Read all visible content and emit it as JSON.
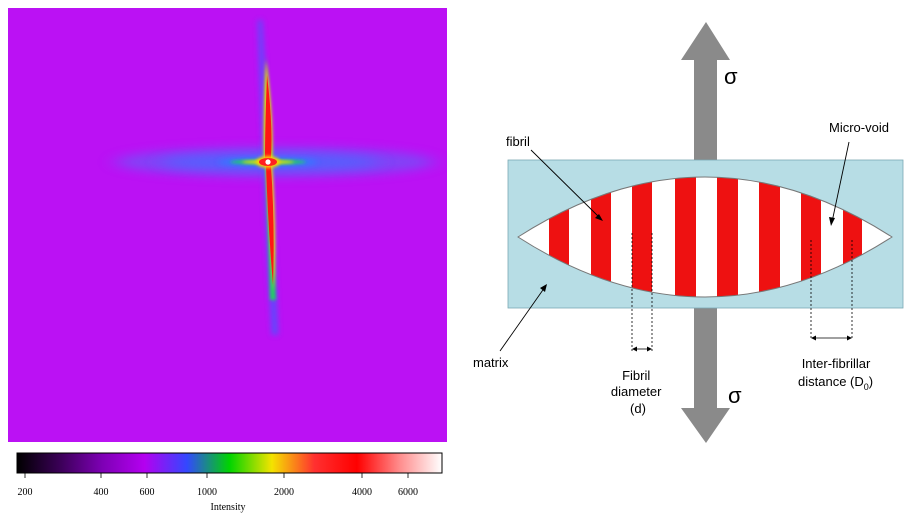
{
  "pattern": {
    "background_color": "#bb11f4",
    "colorbar": {
      "ticks": [
        "200",
        "400",
        "600",
        "1000",
        "2000",
        "4000",
        "6000"
      ],
      "label": "Intensity",
      "stops": [
        "#000000",
        "#3a0056",
        "#7d00b4",
        "#b400f0",
        "#3348ff",
        "#00d400",
        "#f4e300",
        "#ff3030",
        "#ff0000",
        "#ff8c8c",
        "#ffffff"
      ]
    }
  },
  "schematic": {
    "stress_symbol": "σ",
    "labels": {
      "fibril": "fibril",
      "micro_void": "Micro-void",
      "matrix": "matrix",
      "fibril_diameter": [
        "Fibril",
        "diameter",
        "(d)"
      ],
      "inter_fibrillar": [
        "Inter-fibrillar",
        "distance (D"
      ],
      "inter_fibrillar_sub": "0",
      "inter_fibrillar_close": ")"
    },
    "colors": {
      "matrix": "#b7dde5",
      "fibril": "#ee1111",
      "void": "#ffffff",
      "arrow": "#8a8a8a"
    }
  }
}
